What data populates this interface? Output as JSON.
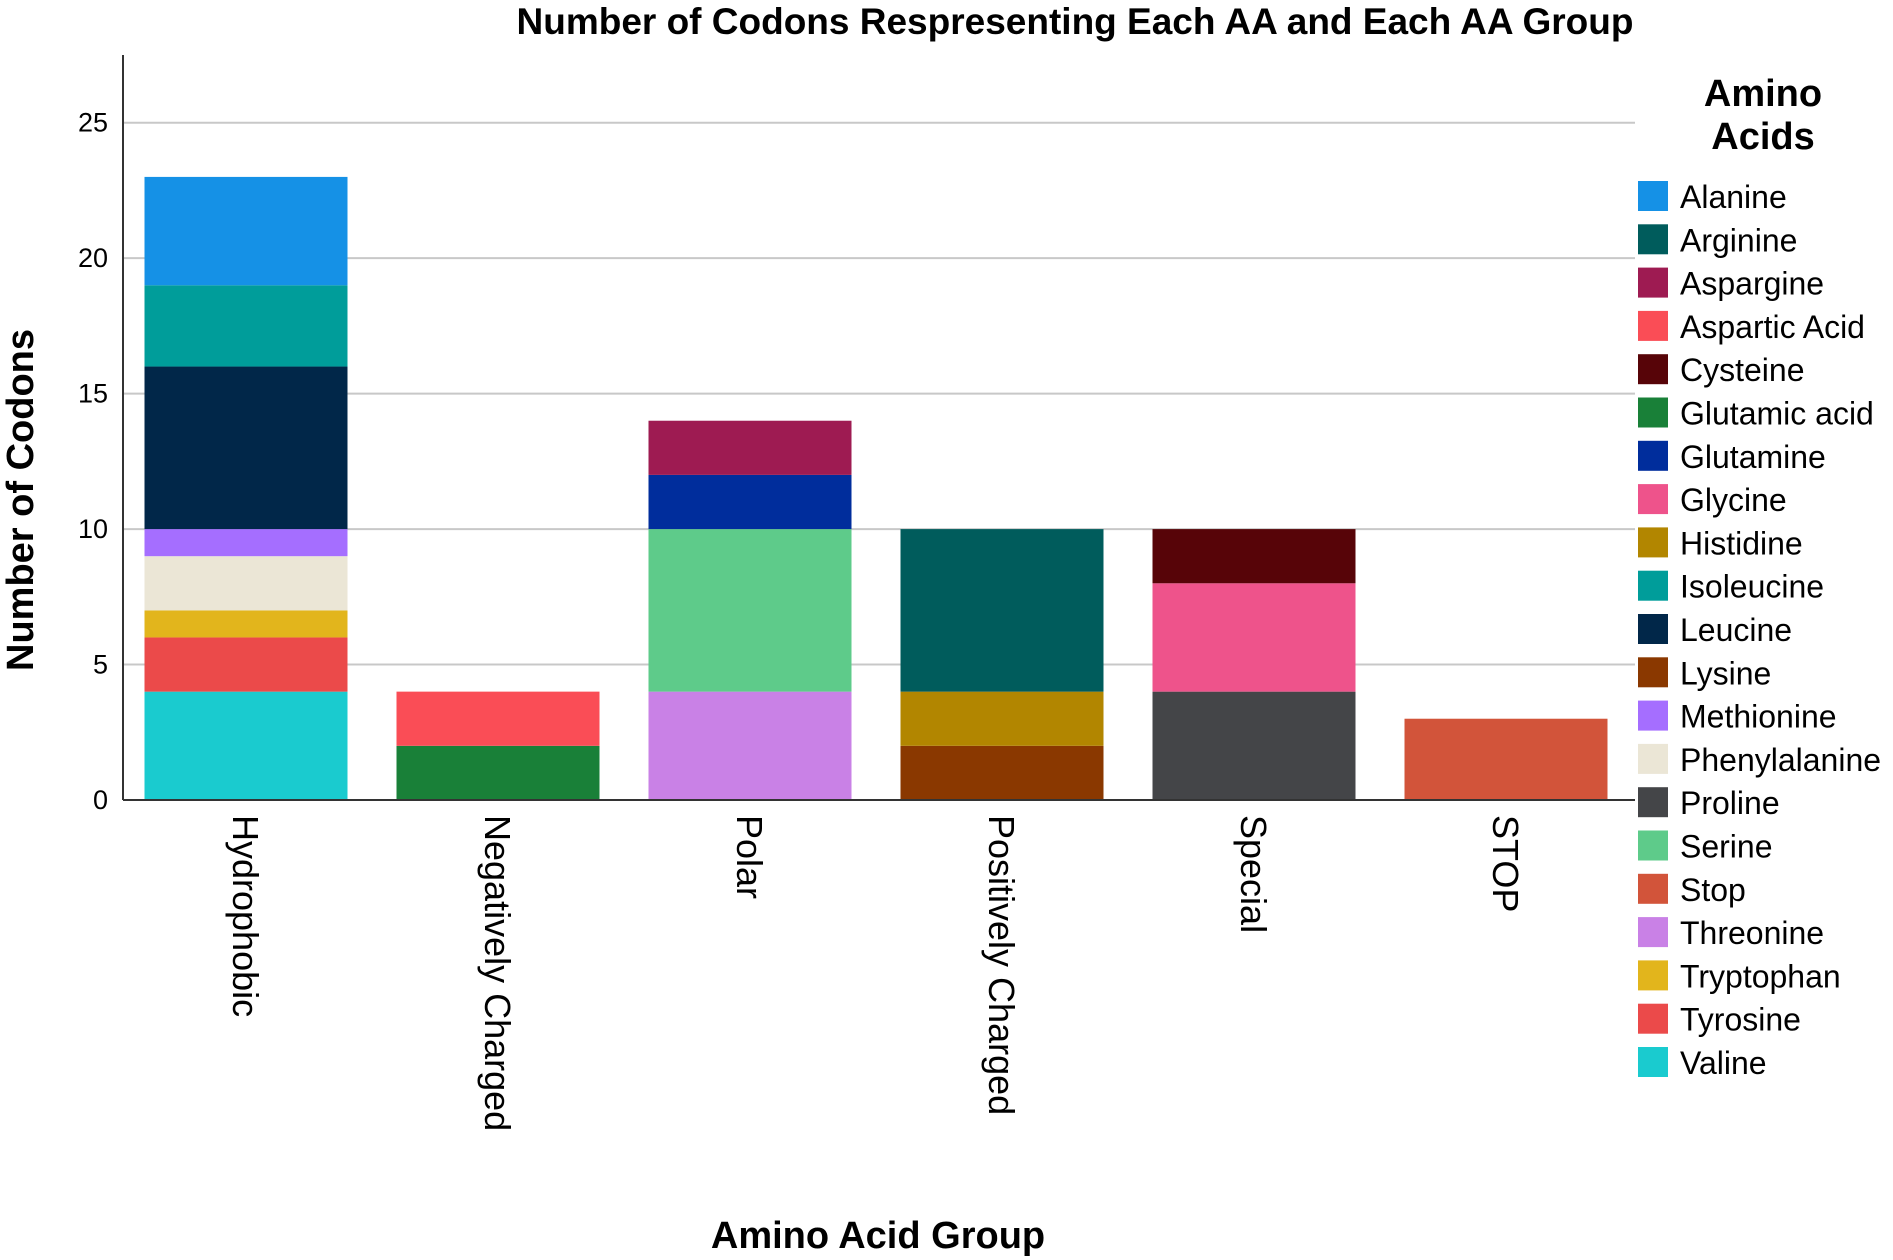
{
  "chart_data": {
    "type": "bar",
    "stacked": true,
    "title": "Number of Codons Respresenting Each AA and Each AA Group",
    "xlabel": "Amino Acid Group",
    "ylabel": "Number of Codons",
    "ylim": [
      0,
      27.5
    ],
    "yticks": [
      0,
      5,
      10,
      15,
      20,
      25
    ],
    "grid": "horizontal",
    "legend_title": [
      "Amino",
      "Acids"
    ],
    "legend_position": "right",
    "categories": [
      "Hydrophobic",
      "Negatively Charged",
      "Polar",
      "Positively Charged",
      "Special",
      "STOP"
    ],
    "series": [
      {
        "name": "Alanine",
        "color": "#1591E6",
        "values": [
          4,
          0,
          0,
          0,
          0,
          0
        ]
      },
      {
        "name": "Arginine",
        "color": "#005C5C",
        "values": [
          0,
          0,
          0,
          6,
          0,
          0
        ]
      },
      {
        "name": "Aspargine",
        "color": "#9E1B52",
        "values": [
          0,
          0,
          2,
          0,
          0,
          0
        ]
      },
      {
        "name": "Aspartic Acid",
        "color": "#FA4D56",
        "values": [
          0,
          2,
          0,
          0,
          0,
          0
        ]
      },
      {
        "name": "Cysteine",
        "color": "#570408",
        "values": [
          0,
          0,
          0,
          0,
          2,
          0
        ]
      },
      {
        "name": "Glutamic acid",
        "color": "#198038",
        "values": [
          0,
          2,
          0,
          0,
          0,
          0
        ]
      },
      {
        "name": "Glutamine",
        "color": "#002D9C",
        "values": [
          0,
          0,
          2,
          0,
          0,
          0
        ]
      },
      {
        "name": "Glycine",
        "color": "#EE538B",
        "values": [
          0,
          0,
          0,
          0,
          4,
          0
        ]
      },
      {
        "name": "Histidine",
        "color": "#B28600",
        "values": [
          0,
          0,
          0,
          2,
          0,
          0
        ]
      },
      {
        "name": "Isoleucine",
        "color": "#009D9A",
        "values": [
          3,
          0,
          0,
          0,
          0,
          0
        ]
      },
      {
        "name": "Leucine",
        "color": "#012749",
        "values": [
          6,
          0,
          0,
          0,
          0,
          0
        ]
      },
      {
        "name": "Lysine",
        "color": "#8A3800",
        "values": [
          0,
          0,
          0,
          2,
          0,
          0
        ]
      },
      {
        "name": "Methionine",
        "color": "#A56EFF",
        "values": [
          1,
          0,
          0,
          0,
          0,
          0
        ]
      },
      {
        "name": "Phenylalanine",
        "color": "#EBE6D6",
        "values": [
          2,
          0,
          0,
          0,
          0,
          0
        ]
      },
      {
        "name": "Proline",
        "color": "#444548",
        "values": [
          0,
          0,
          0,
          0,
          4,
          0
        ]
      },
      {
        "name": "Serine",
        "color": "#5ECB8A",
        "values": [
          0,
          0,
          6,
          0,
          0,
          0
        ]
      },
      {
        "name": "Stop",
        "color": "#D2543A",
        "values": [
          0,
          0,
          0,
          0,
          0,
          3
        ]
      },
      {
        "name": "Threonine",
        "color": "#C981E6",
        "values": [
          0,
          0,
          4,
          0,
          0,
          0
        ]
      },
      {
        "name": "Tryptophan",
        "color": "#E2B51C",
        "values": [
          1,
          0,
          0,
          0,
          0,
          0
        ]
      },
      {
        "name": "Tyrosine",
        "color": "#EB4A4A",
        "values": [
          2,
          0,
          0,
          0,
          0,
          0
        ]
      },
      {
        "name": "Valine",
        "color": "#1ACBCF",
        "values": [
          4,
          0,
          0,
          0,
          0,
          0
        ]
      }
    ],
    "stack_order": [
      [
        "Valine",
        "Tyrosine",
        "Tryptophan",
        "Phenylalanine",
        "Methionine",
        "Leucine",
        "Isoleucine",
        "Alanine"
      ],
      [
        "Glutamic acid",
        "Aspartic Acid"
      ],
      [
        "Threonine",
        "Serine",
        "Glutamine",
        "Aspargine"
      ],
      [
        "Lysine",
        "Histidine",
        "Arginine"
      ],
      [
        "Proline",
        "Glycine",
        "Cysteine"
      ],
      [
        "Stop"
      ]
    ]
  }
}
